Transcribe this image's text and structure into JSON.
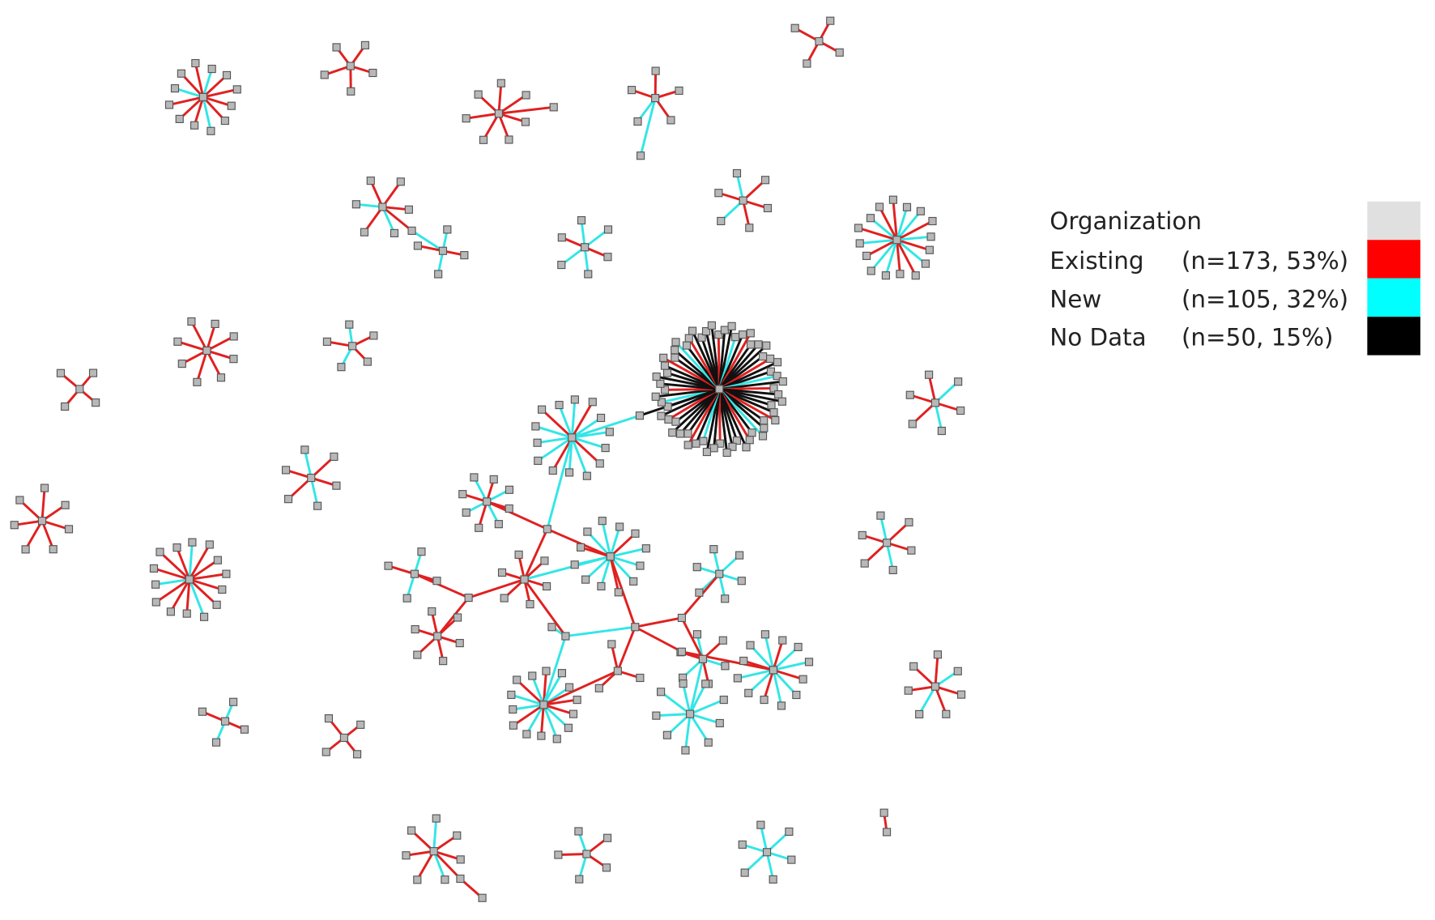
{
  "legend": {
    "title": "Organization",
    "title_color": "#e0e0e0",
    "items": [
      {
        "label": "Existing",
        "count": "(n=173, 53%)",
        "color": "#ff0000"
      },
      {
        "label": "New",
        "count": "(n=105, 32%)",
        "color": "#00ffff"
      },
      {
        "label": "No Data",
        "count": "(n=50, 15%)",
        "color": "#000000"
      }
    ]
  }
}
